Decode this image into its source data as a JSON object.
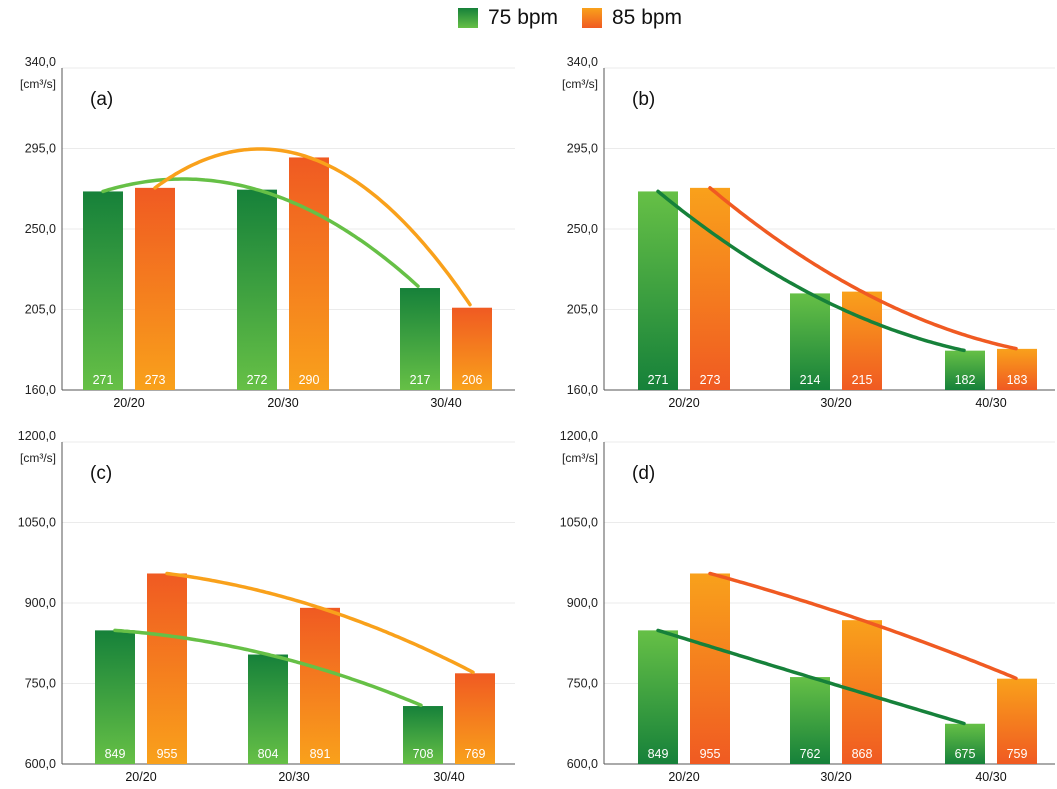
{
  "legend": {
    "series": [
      {
        "name": "75 bpm",
        "color": "#2db34a"
      },
      {
        "name": "85 bpm",
        "color": "#f58a1f"
      }
    ]
  },
  "colors": {
    "green_light": "#66c046",
    "green_dark": "#16813a",
    "orange_light": "#f9a11b",
    "orange_dark": "#f05a22",
    "grid": "#ebebeb",
    "axis": "#555555"
  },
  "chart_data": [
    {
      "type": "bar",
      "panel_label": "(a)",
      "unit": "[cm³/s]",
      "categories": [
        "20/20",
        "20/30",
        "30/40"
      ],
      "ylim": [
        160,
        340
      ],
      "yticks": [
        "160,0",
        "205,0",
        "250,0",
        "295,0",
        "340,0"
      ],
      "grid": true,
      "series": [
        {
          "name": "75 bpm",
          "values": [
            271,
            272,
            217
          ],
          "data_labels": [
            "271",
            "272",
            "217"
          ],
          "gradient": "dark-top"
        },
        {
          "name": "85 bpm",
          "values": [
            273,
            290,
            206
          ],
          "data_labels": [
            "273",
            "290",
            "206"
          ],
          "gradient": "dark-top"
        }
      ],
      "trendlines": [
        {
          "series": "75 bpm",
          "type": "quadratic",
          "color": "#66c046"
        },
        {
          "series": "85 bpm",
          "type": "quadratic",
          "color": "#f9a11b"
        }
      ]
    },
    {
      "type": "bar",
      "panel_label": "(b)",
      "unit": "[cm³/s]",
      "categories": [
        "20/20",
        "30/20",
        "40/30"
      ],
      "ylim": [
        160,
        340
      ],
      "yticks": [
        "160,0",
        "205,0",
        "250,0",
        "295,0",
        "340,0"
      ],
      "grid": true,
      "series": [
        {
          "name": "75 bpm",
          "values": [
            271,
            214,
            182
          ],
          "data_labels": [
            "271",
            "214",
            "182"
          ],
          "gradient": "light-top"
        },
        {
          "name": "85 bpm",
          "values": [
            273,
            215,
            183
          ],
          "data_labels": [
            "273",
            "215",
            "183"
          ],
          "gradient": "light-top"
        }
      ],
      "trendlines": [
        {
          "series": "75 bpm",
          "type": "quadratic",
          "color": "#16813a"
        },
        {
          "series": "85 bpm",
          "type": "quadratic",
          "color": "#f05a22"
        }
      ]
    },
    {
      "type": "bar",
      "panel_label": "(c)",
      "unit": "[cm³/s]",
      "categories": [
        "20/20",
        "20/30",
        "30/40"
      ],
      "ylim": [
        600,
        1200
      ],
      "yticks": [
        "600,0",
        "750,0",
        "900,0",
        "1050,0",
        "1200,0"
      ],
      "grid": true,
      "series": [
        {
          "name": "75 bpm",
          "values": [
            849,
            804,
            708
          ],
          "data_labels": [
            "849",
            "804",
            "708"
          ],
          "gradient": "dark-top"
        },
        {
          "name": "85 bpm",
          "values": [
            955,
            891,
            769
          ],
          "data_labels": [
            "955",
            "891",
            "769"
          ],
          "gradient": "dark-top"
        }
      ],
      "trendlines": [
        {
          "series": "75 bpm",
          "type": "quadratic",
          "color": "#66c046"
        },
        {
          "series": "85 bpm",
          "type": "quadratic",
          "color": "#f9a11b"
        }
      ]
    },
    {
      "type": "bar",
      "panel_label": "(d)",
      "unit": "[cm³/s]",
      "categories": [
        "20/20",
        "30/20",
        "40/30"
      ],
      "ylim": [
        600,
        1200
      ],
      "yticks": [
        "600,0",
        "750,0",
        "900,0",
        "1050,0",
        "1200,0"
      ],
      "grid": true,
      "series": [
        {
          "name": "75 bpm",
          "values": [
            849,
            762,
            675
          ],
          "data_labels": [
            "849",
            "762",
            "675"
          ],
          "gradient": "light-top"
        },
        {
          "name": "85 bpm",
          "values": [
            955,
            868,
            759
          ],
          "data_labels": [
            "955",
            "868",
            "759"
          ],
          "gradient": "light-top"
        }
      ],
      "trendlines": [
        {
          "series": "75 bpm",
          "type": "quadratic",
          "color": "#16813a"
        },
        {
          "series": "85 bpm",
          "type": "quadratic",
          "color": "#f05a22"
        }
      ]
    }
  ]
}
